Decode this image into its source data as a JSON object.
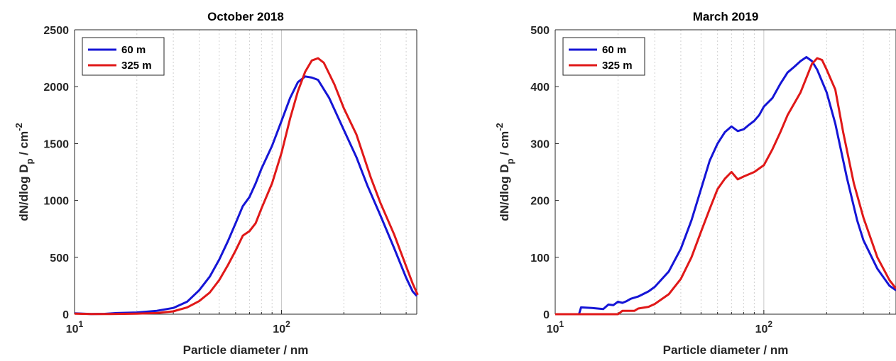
{
  "colors": {
    "series_60m": "#1515d6",
    "series_325m": "#e01818",
    "axis": "#262626",
    "grid": "#d0d0d0"
  },
  "chart_data": [
    {
      "type": "line",
      "title": "October 2018",
      "xlabel": "Particle diameter / nm",
      "ylabel": "dN/dlog D_p / cm^-2",
      "ylabel_parts": {
        "main": "dN/dlog D",
        "sub": "p",
        "unit": " / cm",
        "sup": "-2"
      },
      "x_scale": "log",
      "xlim": [
        10,
        450
      ],
      "ylim": [
        0,
        2500
      ],
      "x_ticks": [
        {
          "base": "10",
          "exp": "1",
          "value": 10
        },
        {
          "base": "10",
          "exp": "2",
          "value": 100
        }
      ],
      "y_ticks": [
        "0",
        "500",
        "1000",
        "1500",
        "2000",
        "2500"
      ],
      "y_tick_values": [
        0,
        500,
        1000,
        1500,
        2000,
        2500
      ],
      "grid": "vertical minor dotted, major solid at 10^2",
      "legend_position": "top-left",
      "series": [
        {
          "name": "60 m",
          "color": "#1515d6",
          "points": [
            [
              10,
              8
            ],
            [
              12,
              2
            ],
            [
              14,
              3
            ],
            [
              16,
              10
            ],
            [
              20,
              15
            ],
            [
              25,
              30
            ],
            [
              30,
              55
            ],
            [
              35,
              110
            ],
            [
              40,
              210
            ],
            [
              45,
              330
            ],
            [
              50,
              480
            ],
            [
              55,
              640
            ],
            [
              60,
              800
            ],
            [
              65,
              950
            ],
            [
              70,
              1030
            ],
            [
              75,
              1150
            ],
            [
              80,
              1280
            ],
            [
              90,
              1480
            ],
            [
              100,
              1700
            ],
            [
              110,
              1900
            ],
            [
              120,
              2040
            ],
            [
              130,
              2090
            ],
            [
              140,
              2080
            ],
            [
              150,
              2060
            ],
            [
              170,
              1900
            ],
            [
              200,
              1620
            ],
            [
              230,
              1380
            ],
            [
              260,
              1130
            ],
            [
              300,
              870
            ],
            [
              350,
              580
            ],
            [
              400,
              320
            ],
            [
              430,
              200
            ],
            [
              450,
              160
            ]
          ]
        },
        {
          "name": "325 m",
          "color": "#e01818",
          "points": [
            [
              10,
              5
            ],
            [
              12,
              1
            ],
            [
              15,
              2
            ],
            [
              20,
              5
            ],
            [
              25,
              10
            ],
            [
              30,
              25
            ],
            [
              35,
              60
            ],
            [
              40,
              115
            ],
            [
              45,
              190
            ],
            [
              50,
              300
            ],
            [
              55,
              430
            ],
            [
              60,
              560
            ],
            [
              65,
              690
            ],
            [
              70,
              730
            ],
            [
              75,
              800
            ],
            [
              80,
              930
            ],
            [
              90,
              1150
            ],
            [
              100,
              1420
            ],
            [
              110,
              1720
            ],
            [
              120,
              1960
            ],
            [
              130,
              2130
            ],
            [
              140,
              2230
            ],
            [
              150,
              2250
            ],
            [
              160,
              2210
            ],
            [
              180,
              2020
            ],
            [
              200,
              1810
            ],
            [
              230,
              1580
            ],
            [
              270,
              1200
            ],
            [
              300,
              980
            ],
            [
              350,
              700
            ],
            [
              400,
              420
            ],
            [
              430,
              270
            ],
            [
              455,
              170
            ]
          ]
        }
      ]
    },
    {
      "type": "line",
      "title": "March 2019",
      "xlabel": "Particle diameter / nm",
      "ylabel": "dN/dlog D_p / cm^-2",
      "ylabel_parts": {
        "main": "dN/dlog D",
        "sub": "p",
        "unit": " / cm",
        "sup": "-2"
      },
      "x_scale": "log",
      "xlim": [
        10,
        430
      ],
      "ylim": [
        0,
        500
      ],
      "x_ticks": [
        {
          "base": "10",
          "exp": "1",
          "value": 10
        },
        {
          "base": "10",
          "exp": "2",
          "value": 100
        }
      ],
      "y_ticks": [
        "0",
        "100",
        "200",
        "300",
        "400",
        "500"
      ],
      "y_tick_values": [
        0,
        100,
        200,
        300,
        400,
        500
      ],
      "grid": "vertical minor dotted, major solid at 10^2",
      "legend_position": "top-left",
      "series": [
        {
          "name": "60 m",
          "color": "#1515d6",
          "points": [
            [
              10,
              0
            ],
            [
              12.5,
              0
            ],
            [
              13,
              0
            ],
            [
              13.3,
              12
            ],
            [
              15,
              11
            ],
            [
              17,
              9
            ],
            [
              18,
              17
            ],
            [
              19,
              16
            ],
            [
              20,
              22
            ],
            [
              21,
              20
            ],
            [
              22,
              23
            ],
            [
              23,
              27
            ],
            [
              25,
              31
            ],
            [
              28,
              40
            ],
            [
              30,
              48
            ],
            [
              35,
              75
            ],
            [
              40,
              115
            ],
            [
              45,
              165
            ],
            [
              50,
              220
            ],
            [
              55,
              270
            ],
            [
              60,
              300
            ],
            [
              65,
              320
            ],
            [
              70,
              330
            ],
            [
              75,
              322
            ],
            [
              80,
              325
            ],
            [
              85,
              333
            ],
            [
              90,
              340
            ],
            [
              95,
              350
            ],
            [
              100,
              365
            ],
            [
              110,
              380
            ],
            [
              120,
              405
            ],
            [
              130,
              425
            ],
            [
              140,
              435
            ],
            [
              150,
              445
            ],
            [
              160,
              452
            ],
            [
              170,
              445
            ],
            [
              180,
              430
            ],
            [
              200,
              390
            ],
            [
              220,
              335
            ],
            [
              250,
              240
            ],
            [
              280,
              165
            ],
            [
              300,
              130
            ],
            [
              350,
              80
            ],
            [
              400,
              50
            ],
            [
              430,
              42
            ]
          ]
        },
        {
          "name": "325 m",
          "color": "#e01818",
          "points": [
            [
              10,
              0
            ],
            [
              20,
              0
            ],
            [
              21,
              6
            ],
            [
              24,
              6
            ],
            [
              25,
              10
            ],
            [
              28,
              13
            ],
            [
              30,
              18
            ],
            [
              35,
              35
            ],
            [
              40,
              62
            ],
            [
              45,
              100
            ],
            [
              50,
              145
            ],
            [
              55,
              185
            ],
            [
              60,
              220
            ],
            [
              65,
              238
            ],
            [
              70,
              250
            ],
            [
              75,
              237
            ],
            [
              80,
              242
            ],
            [
              90,
              250
            ],
            [
              100,
              262
            ],
            [
              110,
              290
            ],
            [
              120,
              320
            ],
            [
              130,
              350
            ],
            [
              150,
              390
            ],
            [
              170,
              440
            ],
            [
              180,
              450
            ],
            [
              190,
              447
            ],
            [
              200,
              430
            ],
            [
              220,
              395
            ],
            [
              240,
              320
            ],
            [
              270,
              230
            ],
            [
              300,
              170
            ],
            [
              350,
              100
            ],
            [
              400,
              60
            ],
            [
              430,
              45
            ]
          ]
        }
      ]
    }
  ]
}
